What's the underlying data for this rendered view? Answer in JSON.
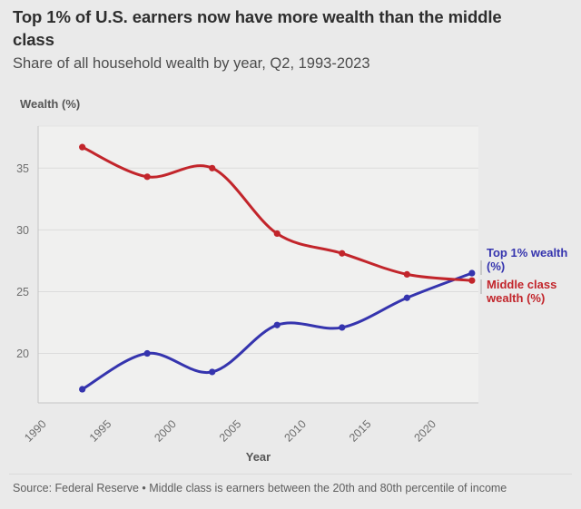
{
  "header": {
    "title": "Top 1% of U.S. earners now have more wealth than the middle class",
    "subtitle": "Share of all household wealth by year, Q2, 1993-2023"
  },
  "chart_data": {
    "type": "line",
    "title": "Top 1% of U.S. earners now have more wealth than the middle class",
    "subtitle": "Share of all household wealth by year, Q2, 1993-2023",
    "xlabel": "Year",
    "ylabel": "Wealth (%)",
    "x": [
      1993,
      1998,
      2003,
      2008,
      2013,
      2018,
      2023
    ],
    "series": [
      {
        "name": "Top 1% wealth (%)",
        "color": "#3534ae",
        "values": [
          17.1,
          20.0,
          18.5,
          22.3,
          22.1,
          24.5,
          26.5
        ]
      },
      {
        "name": "Middle class wealth (%)",
        "color": "#c2252b",
        "values": [
          36.7,
          34.3,
          35.0,
          29.7,
          28.1,
          26.4,
          25.9
        ]
      }
    ],
    "x_ticks": [
      1990,
      1995,
      2000,
      2005,
      2010,
      2015,
      2020
    ],
    "y_ticks": [
      20,
      25,
      30,
      35
    ],
    "xlim": [
      1989.6,
      2023.5
    ],
    "ylim": [
      16.0,
      38.4
    ],
    "grid": "horizontal",
    "legend_position": "right",
    "marker": "circle"
  },
  "colors": {
    "background": "#eaeaea",
    "plot_background": "#f0f0ef",
    "gridline": "#dcdcdc",
    "axis": "#c4c4c4",
    "legend_tick": "#c9c9c9"
  },
  "footer": {
    "source": "Source: Federal Reserve • Middle class is earners between the 20th and 80th percentile of income"
  }
}
